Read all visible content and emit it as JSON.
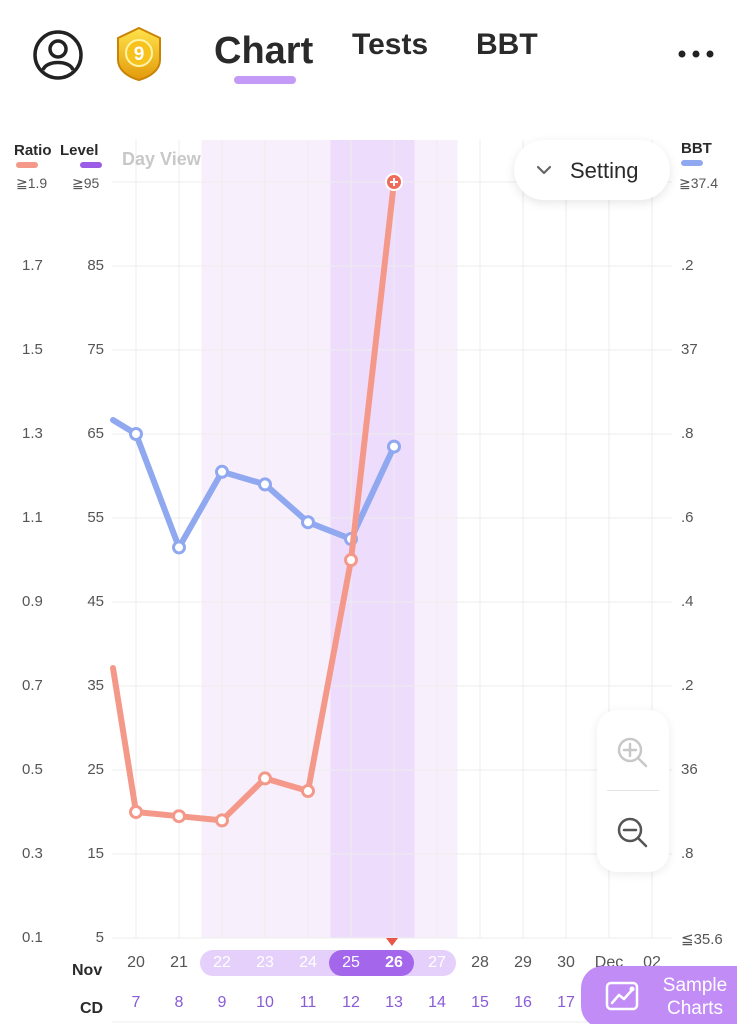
{
  "header": {
    "tabs": [
      {
        "label": "Chart",
        "active": true
      },
      {
        "label": "Tests",
        "active": false
      },
      {
        "label": "BBT",
        "active": false
      }
    ],
    "badge_number": "9",
    "accent_color": "#c39af5"
  },
  "legend": {
    "ratio": {
      "label": "Ratio",
      "color": "#f4998a",
      "limit": "≧1.9"
    },
    "level": {
      "label": "Level",
      "color": "#9b5ce6",
      "limit": "≧95"
    },
    "bbt": {
      "label": "BBT",
      "color": "#8fa8f0",
      "limit": "≧37.4"
    }
  },
  "day_view_label": "Day View",
  "setting_label": "Setting",
  "axes": {
    "ratio_ticks": [
      "1.7",
      "1.5",
      "1.3",
      "1.1",
      "0.9",
      "0.7",
      "0.5",
      "0.3",
      "0.1"
    ],
    "level_ticks": [
      "85",
      "75",
      "65",
      "55",
      "45",
      "35",
      "25",
      "15",
      "5"
    ],
    "bbt_ticks": [
      ".2",
      "37",
      ".8",
      ".6",
      ".4",
      ".2",
      "36",
      ".8"
    ],
    "bbt_bottom": "≦35.6"
  },
  "x_axis": {
    "month_label": "Nov",
    "cd_label": "CD",
    "dates": [
      "20",
      "21",
      "22",
      "23",
      "24",
      "25",
      "26",
      "27",
      "28",
      "29",
      "30",
      "Dec",
      "02"
    ],
    "cycle_days": [
      "7",
      "8",
      "9",
      "10",
      "11",
      "12",
      "13",
      "14",
      "15",
      "16",
      "17"
    ]
  },
  "chart_data": {
    "type": "line",
    "x": [
      "20",
      "21",
      "22",
      "23",
      "24",
      "25",
      "26"
    ],
    "series": [
      {
        "name": "Ratio",
        "color": "#f4998a",
        "values": [
          0.4,
          0.39,
          0.38,
          0.48,
          0.45,
          1.0,
          1.9
        ]
      },
      {
        "name": "BBT",
        "color": "#8fa8f0",
        "values": [
          36.8,
          36.53,
          36.71,
          36.68,
          36.59,
          36.55,
          36.77
        ]
      }
    ],
    "ratio_ylim": [
      0.1,
      1.9
    ],
    "bbt_ylim": [
      35.6,
      37.4
    ],
    "highlight_days": [
      "22",
      "23",
      "24",
      "25",
      "26",
      "27"
    ],
    "peak_days": [
      "25",
      "26"
    ],
    "grid": true
  },
  "zoom": {
    "in_icon": "zoom-in-icon",
    "out_icon": "zoom-out-icon"
  },
  "sample_charts_label_1": "Sample",
  "sample_charts_label_2": "Charts"
}
